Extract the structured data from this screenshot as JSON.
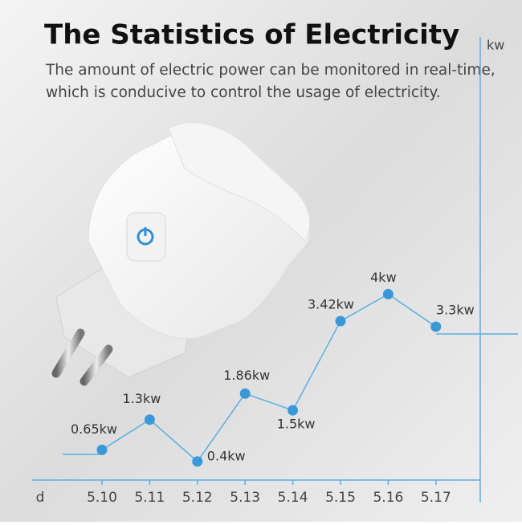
{
  "chart_data": {
    "type": "line",
    "title": "The Statistics of Electricity",
    "subtitle": [
      "The amount of electric power can be monitored in real-time,",
      "which is conducive to control the usage of electricity."
    ],
    "x_label": "d",
    "y_label": "kw",
    "categories": [
      "5.10",
      "5.11",
      "5.12",
      "5.13",
      "5.14",
      "5.15",
      "5.16",
      "5.17"
    ],
    "values": [
      0.65,
      1.3,
      0.4,
      1.86,
      1.5,
      3.42,
      4,
      3.3
    ],
    "value_labels": [
      "0.65kw",
      "1.3kw",
      "0.4kw",
      "1.86kw",
      "1.5kw",
      "3.42kw",
      "4kw",
      "3.3kw"
    ],
    "color": "#3b98d8",
    "ylim": [
      0,
      9.5
    ]
  }
}
